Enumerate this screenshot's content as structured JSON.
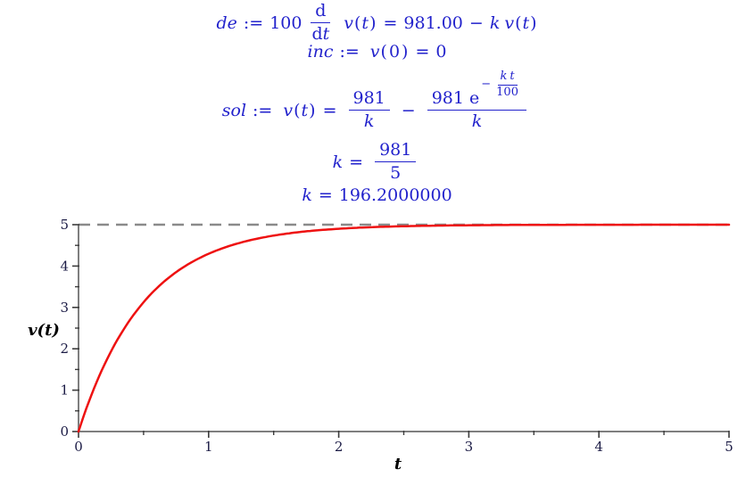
{
  "page": {
    "background": "#ffffff"
  },
  "math_output": {
    "color": "#2222cc",
    "sym": {
      "assign": ":=",
      "eq": "=",
      "minus": "−",
      "v": "v",
      "t": "t",
      "k": "k",
      "lp": "(",
      "rp": ")"
    },
    "line1": {
      "lhs": "de",
      "coeff": "100",
      "d_num": "d",
      "d_den": "d",
      "rhs_const": "981.00"
    },
    "line2": {
      "lhs": "inc",
      "zero_arg": "0",
      "rhs": "0"
    },
    "line3": {
      "lhs": "sol",
      "frac1_num": "981",
      "frac2_coeff": "981 e",
      "exp_den": "100"
    },
    "line4": {
      "num": "981",
      "den": "5"
    },
    "line5": {
      "value": "196.2000000"
    }
  },
  "chart_data": {
    "type": "line",
    "title": "",
    "xlabel": "t",
    "ylabel": "v(t)",
    "xlim": [
      0,
      5
    ],
    "ylim": [
      0,
      5
    ],
    "grid": false,
    "x_major_ticks": [
      0,
      1,
      2,
      3,
      4,
      5
    ],
    "x_minor_ticks": [
      0.5,
      1.5,
      2.5,
      3.5,
      4.5
    ],
    "y_major_ticks": [
      0,
      1,
      2,
      3,
      4,
      5
    ],
    "y_minor_ticks": [
      0.5,
      1.5,
      2.5,
      3.5,
      4.5
    ],
    "asymptote": {
      "y": 5,
      "style": "dashed",
      "color": "#8a8a8a"
    },
    "axis_color": "#7f7f7f",
    "tick_color": "#3c3c3c",
    "label_color": "#1b1b45",
    "series": [
      {
        "name": "v(t)",
        "function": "v(t) = 5 - 5*exp(-1.962*t)",
        "k_over_100": 1.962,
        "v_max": 5,
        "color": "#ee1111",
        "points": [
          [
            0,
            0
          ],
          [
            0.25,
            1.939
          ],
          [
            0.5,
            3.125
          ],
          [
            0.75,
            3.852
          ],
          [
            1.0,
            4.297
          ],
          [
            1.25,
            4.57
          ],
          [
            1.5,
            4.736
          ],
          [
            1.75,
            4.839
          ],
          [
            2.0,
            4.901
          ],
          [
            2.25,
            4.94
          ],
          [
            2.5,
            4.963
          ],
          [
            2.75,
            4.977
          ],
          [
            3.0,
            4.986
          ],
          [
            3.25,
            4.991
          ],
          [
            3.5,
            4.995
          ],
          [
            3.75,
            4.997
          ],
          [
            4.0,
            4.998
          ],
          [
            4.25,
            4.999
          ],
          [
            4.5,
            4.999
          ],
          [
            4.75,
            5.0
          ],
          [
            5.0,
            5.0
          ]
        ]
      }
    ]
  }
}
